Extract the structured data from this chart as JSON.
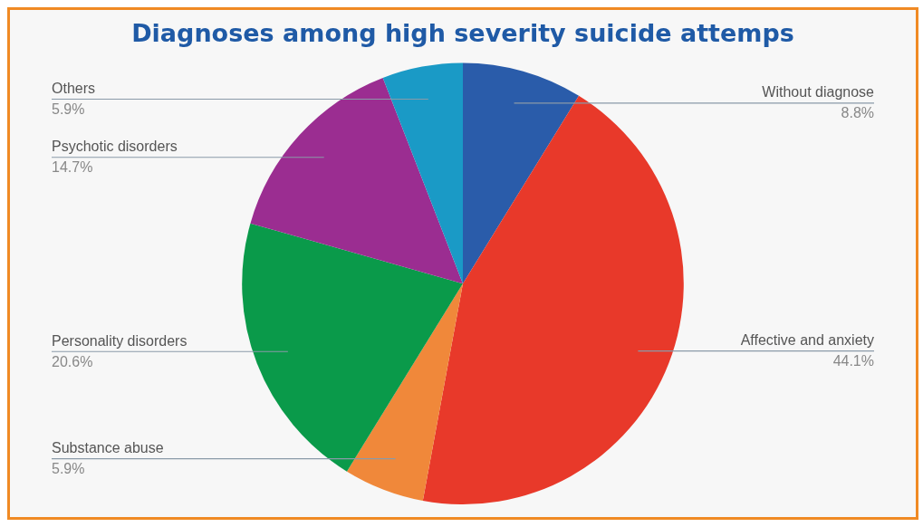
{
  "chart_data": {
    "type": "pie",
    "title": "Diagnoses among high severity suicide attemps",
    "categories": [
      "Without diagnose",
      "Affective and anxiety",
      "Substance abuse",
      "Personality disorders",
      "Psychotic disorders",
      "Others"
    ],
    "values": [
      8.8,
      44.1,
      5.9,
      20.6,
      14.7,
      5.9
    ],
    "value_labels": [
      "8.8%",
      "44.1%",
      "5.9%",
      "20.6%",
      "14.7%",
      "5.9%"
    ],
    "colors": [
      "#2a5caa",
      "#e8392a",
      "#f0883a",
      "#0a9a4a",
      "#9b2d91",
      "#1a9ac6"
    ],
    "legend": false
  }
}
